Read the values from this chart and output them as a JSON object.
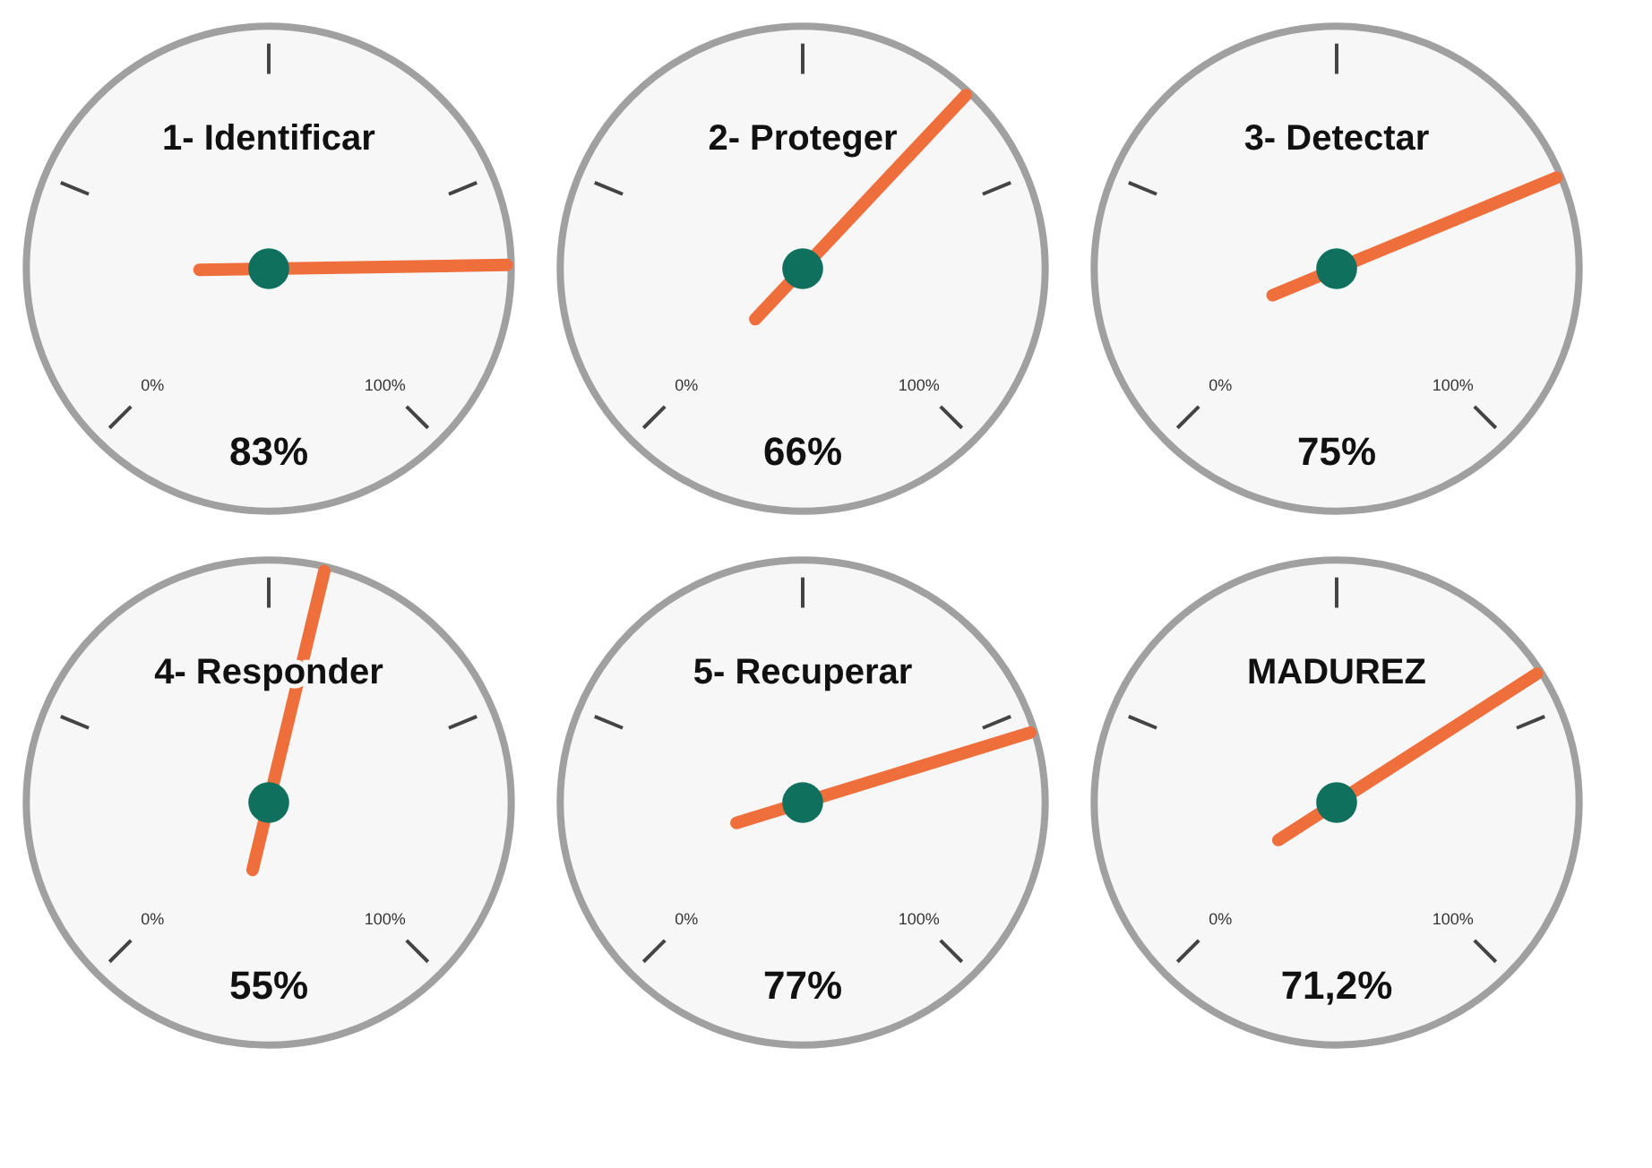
{
  "chart_data": [
    {
      "type": "other",
      "title": "1- Identificar",
      "values": [
        83
      ],
      "value_labels": [
        "83%"
      ],
      "annotations": [
        "0%",
        "100%"
      ]
    },
    {
      "type": "other",
      "title": "2- Proteger",
      "values": [
        66
      ],
      "value_labels": [
        "66%"
      ],
      "annotations": [
        "0%",
        "100%"
      ]
    },
    {
      "type": "other",
      "title": "3- Detectar",
      "values": [
        75
      ],
      "value_labels": [
        "75%"
      ],
      "annotations": [
        "0%",
        "100%"
      ]
    },
    {
      "type": "other",
      "title": "4- Responder",
      "values": [
        55
      ],
      "value_labels": [
        "55%"
      ],
      "annotations": [
        "0%",
        "100%"
      ]
    },
    {
      "type": "other",
      "title": "5- Recuperar",
      "values": [
        77
      ],
      "value_labels": [
        "77%"
      ],
      "annotations": [
        "0%",
        "100%"
      ]
    },
    {
      "type": "other",
      "title": "MADUREZ",
      "values": [
        71.2
      ],
      "value_labels": [
        "71,2%"
      ],
      "annotations": [
        "0%",
        "100%"
      ]
    }
  ]
}
